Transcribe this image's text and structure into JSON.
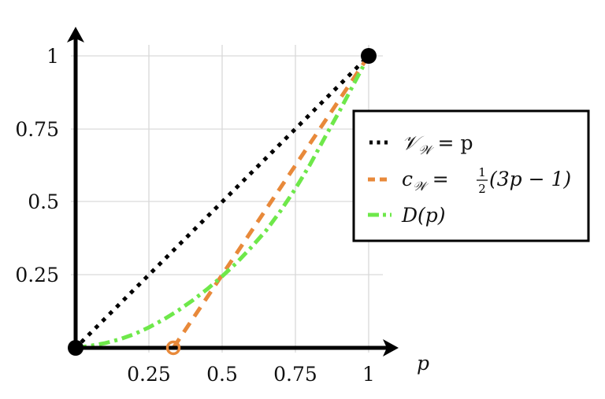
{
  "chart_data": {
    "type": "line",
    "title": "",
    "xlabel": "p",
    "ylabel": "",
    "xlim": [
      0,
      1
    ],
    "ylim": [
      0,
      1
    ],
    "grid": true,
    "legend_position": "right, inside upper-right area (boxed)",
    "x_ticks": [
      "0.25",
      "0.5",
      "0.75",
      "1"
    ],
    "y_ticks": [
      "0.25",
      "0.5",
      "0.75",
      "1"
    ],
    "x": [
      0,
      0.05,
      0.1,
      0.15,
      0.2,
      0.25,
      0.3,
      0.35,
      0.4,
      0.45,
      0.5,
      0.55,
      0.6,
      0.65,
      0.7,
      0.75,
      0.8,
      0.85,
      0.9,
      0.95,
      1.0
    ],
    "series": [
      {
        "name": "V_W = p",
        "label": "𝒱𝒲 = p",
        "style": "dotted",
        "color": "#000000",
        "x": [
          0,
          1
        ],
        "values": [
          0,
          1
        ]
      },
      {
        "name": "c_W = 1/2 (3p - 1)",
        "label": "c𝒲 = ½ (3p − 1)",
        "style": "dashed",
        "color": "#e8893a",
        "x": [
          0.3333,
          1
        ],
        "values": [
          0,
          1
        ]
      },
      {
        "name": "D(p)",
        "label": "D(p)",
        "style": "dash-dot",
        "color": "#6ee84a",
        "x": [
          0,
          0.05,
          0.1,
          0.15,
          0.2,
          0.25,
          0.3,
          0.35,
          0.4,
          0.45,
          0.5,
          0.55,
          0.6,
          0.65,
          0.7,
          0.75,
          0.8,
          0.85,
          0.9,
          0.95,
          1.0
        ],
        "values": [
          0,
          0.007,
          0.016,
          0.029,
          0.047,
          0.07,
          0.097,
          0.128,
          0.163,
          0.202,
          0.245,
          0.292,
          0.345,
          0.402,
          0.47,
          0.545,
          0.628,
          0.72,
          0.81,
          0.905,
          1.0
        ]
      }
    ],
    "markers": [
      {
        "name": "origin-point",
        "x": 0,
        "y": 0,
        "style": "filled",
        "color": "#000000"
      },
      {
        "name": "top-right-point",
        "x": 1,
        "y": 1,
        "style": "filled",
        "color": "#000000"
      },
      {
        "name": "c-zero-point",
        "x": 0.3333,
        "y": 0,
        "style": "open",
        "color": "#e8893a"
      }
    ]
  },
  "axes": {
    "x_label": "p",
    "x_ticks": [
      "0.25",
      "0.5",
      "0.75",
      "1"
    ],
    "y_ticks": [
      "0.25",
      "0.5",
      "0.75",
      "1"
    ]
  },
  "legend": {
    "entries": [
      {
        "main": "𝒱",
        "sub": "𝒲",
        "rest": " = p"
      },
      {
        "main": "c",
        "sub": "𝒲",
        "rest": " = ",
        "frac_num": "1",
        "frac_den": "2",
        "tail": " (3p − 1)"
      },
      {
        "main": "D(p)"
      }
    ]
  },
  "colors": {
    "v_line": "#000000",
    "c_line": "#e8893a",
    "d_line": "#6ee84a",
    "grid": "#d9d9d9",
    "axis": "#000000"
  }
}
